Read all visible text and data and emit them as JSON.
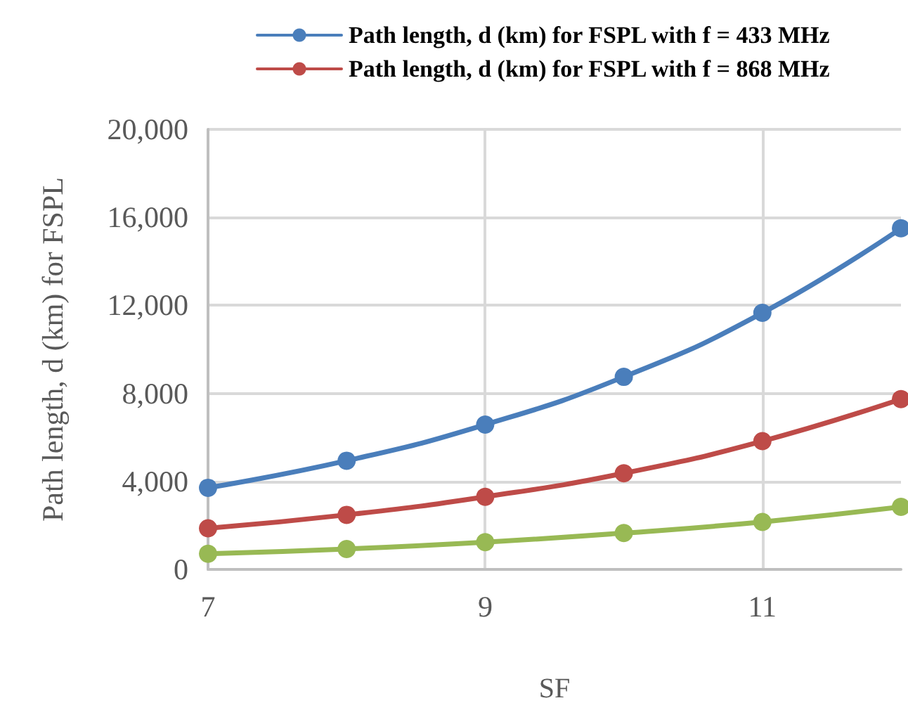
{
  "chart_data": {
    "type": "line",
    "xlabel": "SF",
    "ylabel": "Path length, d (km) for FSPL",
    "x": [
      7,
      8,
      9,
      10,
      11,
      12
    ],
    "series": [
      {
        "name": "Path length, d (km) for FSPL with f = 433 MHz",
        "color": "#4a7ebb",
        "values": [
          3710,
          4940,
          6580,
          8750,
          11660,
          15500
        ]
      },
      {
        "name": "Path length, d (km) for FSPL with f = 868 MHz",
        "color": "#be4b48",
        "values": [
          1870,
          2480,
          3300,
          4370,
          5830,
          7740
        ]
      },
      {
        "color": "#98b954",
        "values": [
          710,
          930,
          1240,
          1650,
          2160,
          2840
        ]
      }
    ],
    "xlim": [
      7,
      12
    ],
    "xticks": [
      7,
      9,
      11
    ],
    "ylim": [
      0,
      20000
    ],
    "yticks": [
      0,
      {
        "value": 4000,
        "label": "4,000"
      },
      {
        "value": 8000,
        "label": "8,000"
      },
      {
        "value": 12000,
        "label": "12,000"
      },
      {
        "value": 16000,
        "label": "16,000"
      },
      {
        "value": 20000,
        "label": "20,000"
      }
    ],
    "grid": true,
    "legend": "top right",
    "marker": "circle",
    "line_style": "solid"
  }
}
